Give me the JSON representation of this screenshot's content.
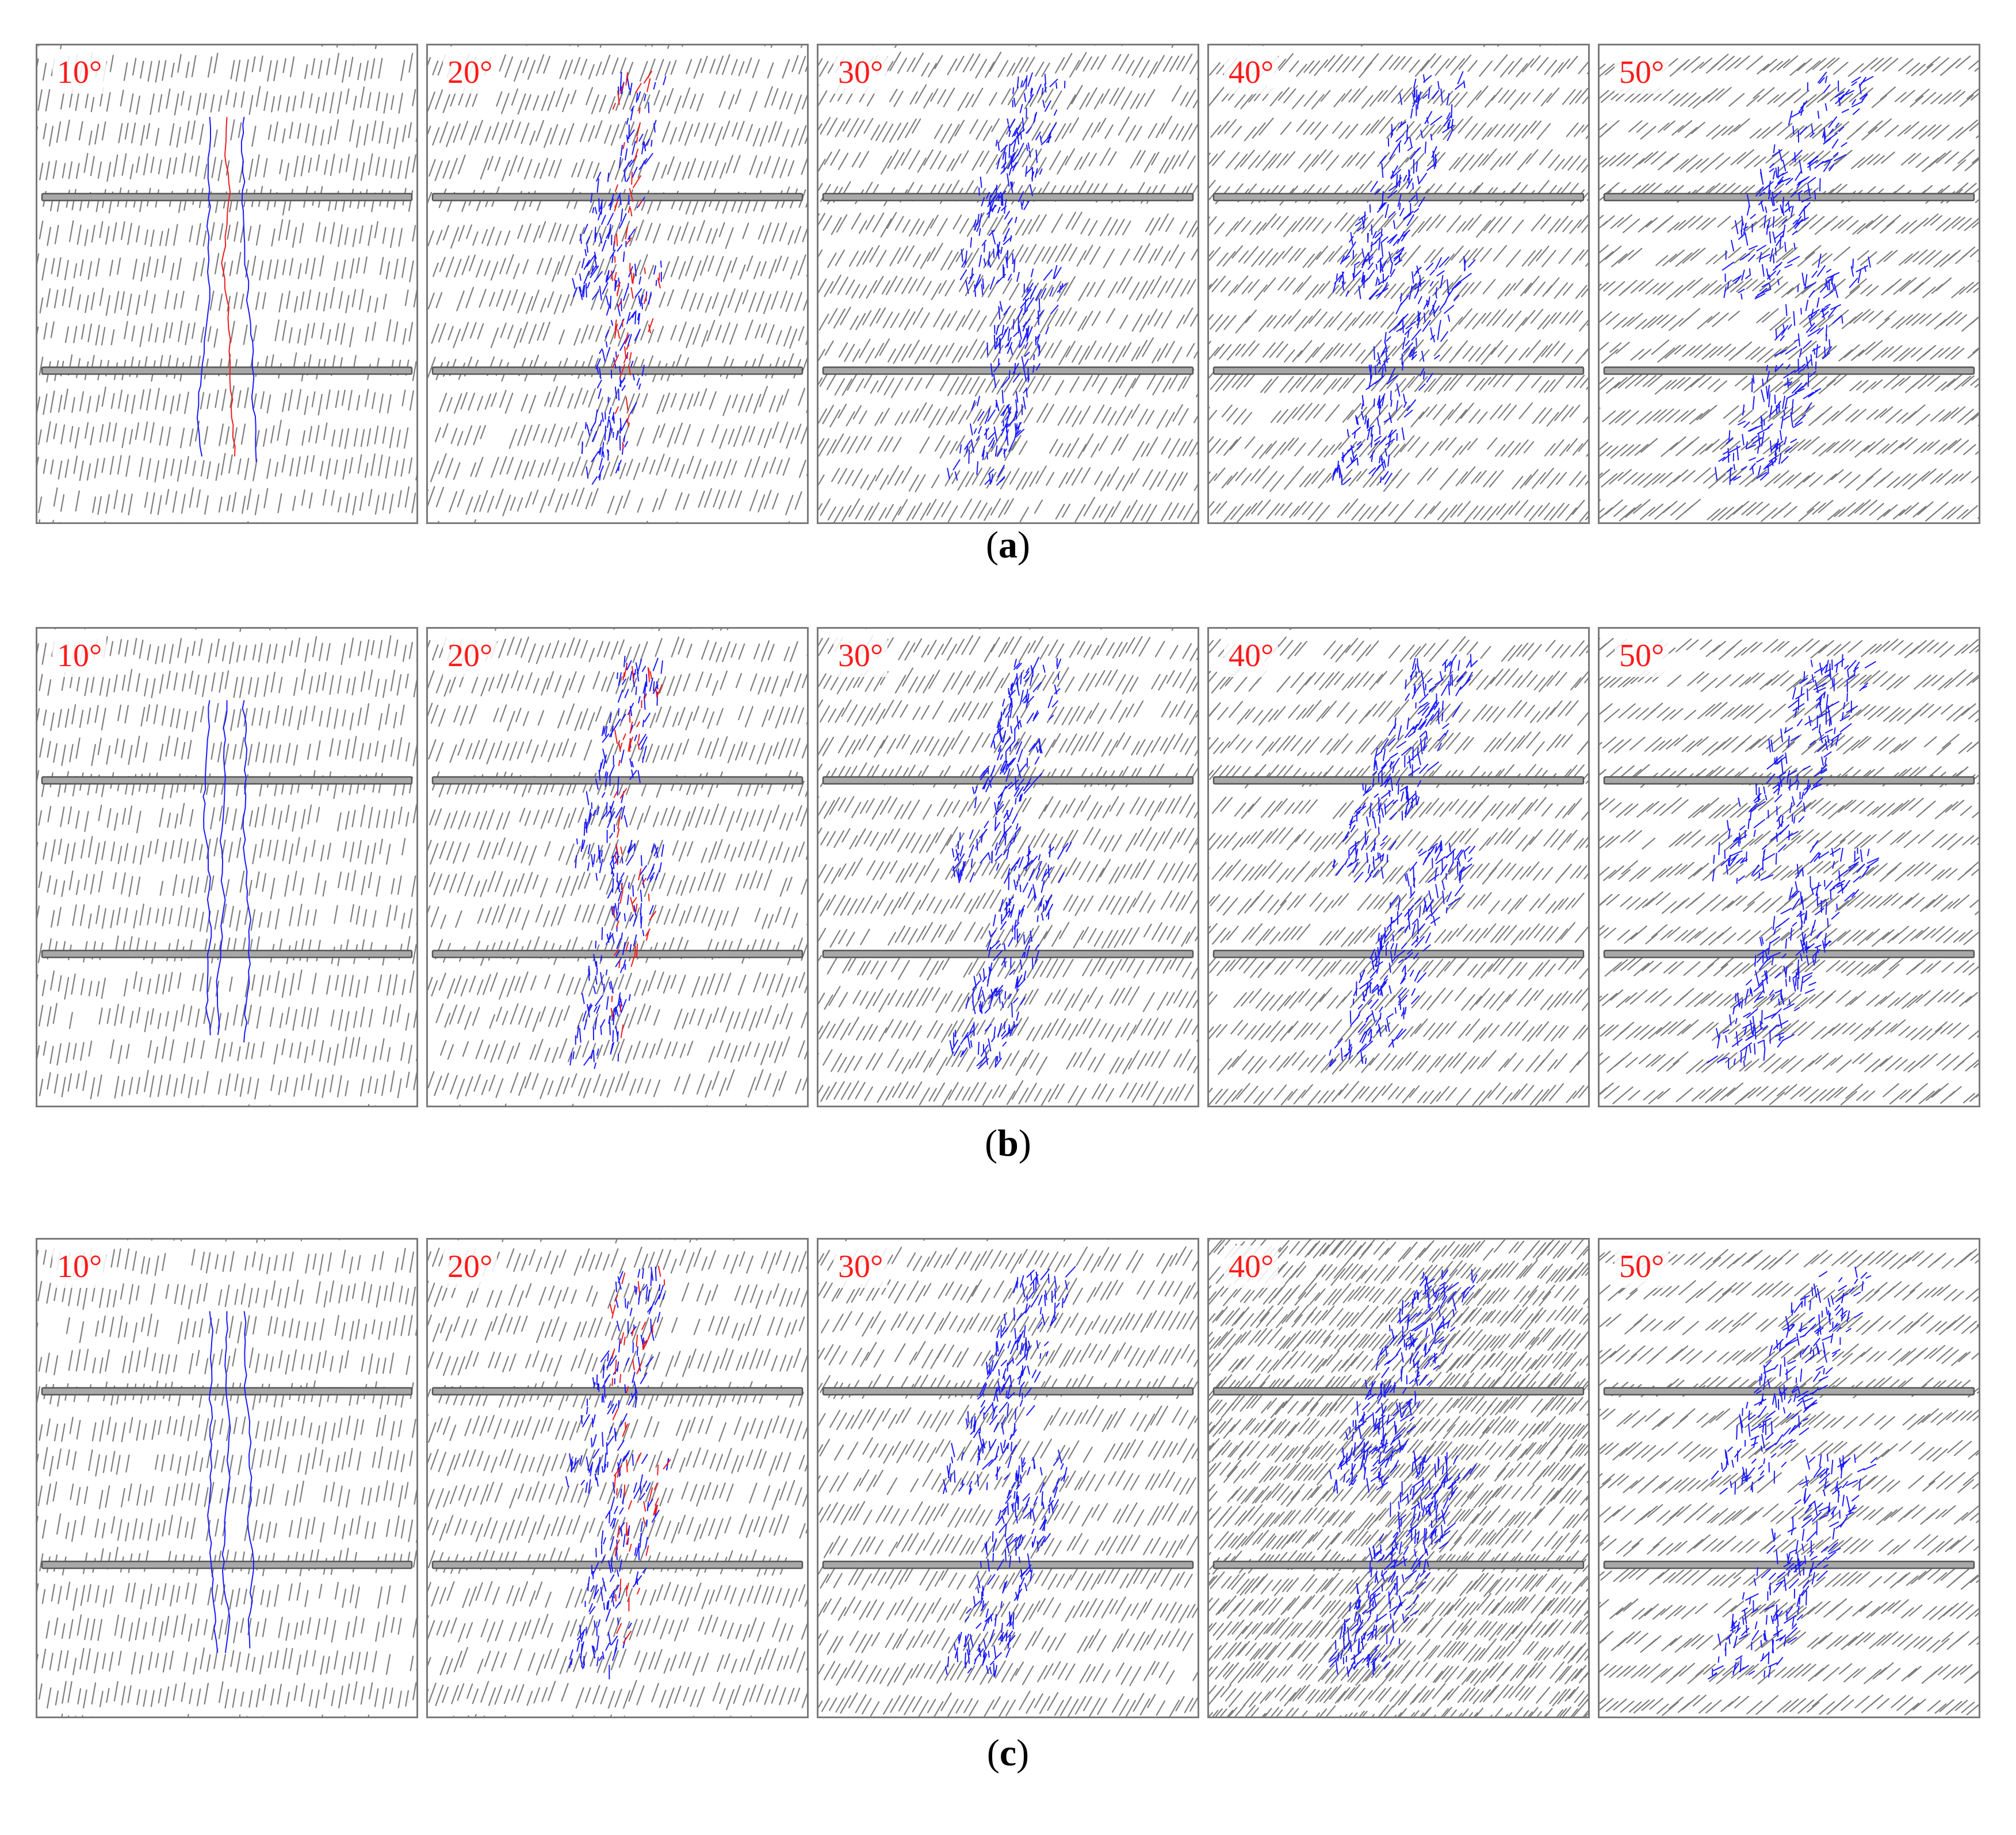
{
  "figure": {
    "rows": [
      {
        "caption": {
          "open": "(",
          "letter": "a",
          "close": ")"
        },
        "panels": [
          {
            "angle": "10°",
            "joint_angle_deg": 10,
            "crack_spread": 0.08,
            "crack_density": 0.45,
            "red_fraction": 0.45,
            "joint_density": 1.0
          },
          {
            "angle": "20°",
            "joint_angle_deg": 20,
            "crack_spread": 0.22,
            "crack_density": 0.75,
            "red_fraction": 0.3,
            "joint_density": 1.0
          },
          {
            "angle": "30°",
            "joint_angle_deg": 30,
            "crack_spread": 0.3,
            "crack_density": 0.85,
            "red_fraction": 0.0,
            "joint_density": 1.05
          },
          {
            "angle": "40°",
            "joint_angle_deg": 40,
            "crack_spread": 0.38,
            "crack_density": 1.0,
            "red_fraction": 0.0,
            "joint_density": 1.05
          },
          {
            "angle": "50°",
            "joint_angle_deg": 50,
            "crack_spread": 0.45,
            "crack_density": 1.0,
            "red_fraction": 0.0,
            "joint_density": 1.05
          }
        ]
      },
      {
        "caption": {
          "open": "(",
          "letter": "b",
          "close": ")"
        },
        "panels": [
          {
            "angle": "10°",
            "joint_angle_deg": 10,
            "crack_spread": 0.1,
            "crack_density": 0.55,
            "red_fraction": 0.0,
            "joint_density": 1.0
          },
          {
            "angle": "20°",
            "joint_angle_deg": 20,
            "crack_spread": 0.22,
            "crack_density": 0.8,
            "red_fraction": 0.3,
            "joint_density": 1.0
          },
          {
            "angle": "30°",
            "joint_angle_deg": 30,
            "crack_spread": 0.32,
            "crack_density": 0.95,
            "red_fraction": 0.0,
            "joint_density": 1.05
          },
          {
            "angle": "40°",
            "joint_angle_deg": 40,
            "crack_spread": 0.4,
            "crack_density": 1.1,
            "red_fraction": 0.0,
            "joint_density": 1.05
          },
          {
            "angle": "50°",
            "joint_angle_deg": 50,
            "crack_spread": 0.48,
            "crack_density": 1.1,
            "red_fraction": 0.0,
            "joint_density": 1.05
          }
        ]
      },
      {
        "caption": {
          "open": "(",
          "letter": "c",
          "close": ")"
        },
        "panels": [
          {
            "angle": "10°",
            "joint_angle_deg": 10,
            "crack_spread": 0.14,
            "crack_density": 0.55,
            "red_fraction": 0.0,
            "joint_density": 1.0
          },
          {
            "angle": "20°",
            "joint_angle_deg": 20,
            "crack_spread": 0.25,
            "crack_density": 0.8,
            "red_fraction": 0.35,
            "joint_density": 1.0
          },
          {
            "angle": "30°",
            "joint_angle_deg": 30,
            "crack_spread": 0.34,
            "crack_density": 0.95,
            "red_fraction": 0.0,
            "joint_density": 1.05
          },
          {
            "angle": "40°",
            "joint_angle_deg": 40,
            "crack_spread": 0.42,
            "crack_density": 1.35,
            "red_fraction": 0.0,
            "joint_density": 1.5
          },
          {
            "angle": "50°",
            "joint_angle_deg": 50,
            "crack_spread": 0.48,
            "crack_density": 1.1,
            "red_fraction": 0.0,
            "joint_density": 1.05
          }
        ]
      }
    ]
  },
  "colors": {
    "angle_label": "#ff1a1a",
    "joint": "#7d7d7d",
    "tensile_crack": "#1a1aff",
    "shear_crack": "#ee1c1c",
    "bolt_fill": "#a8a8a8",
    "bolt_stroke": "#555555",
    "border": "#7a7a7a"
  }
}
